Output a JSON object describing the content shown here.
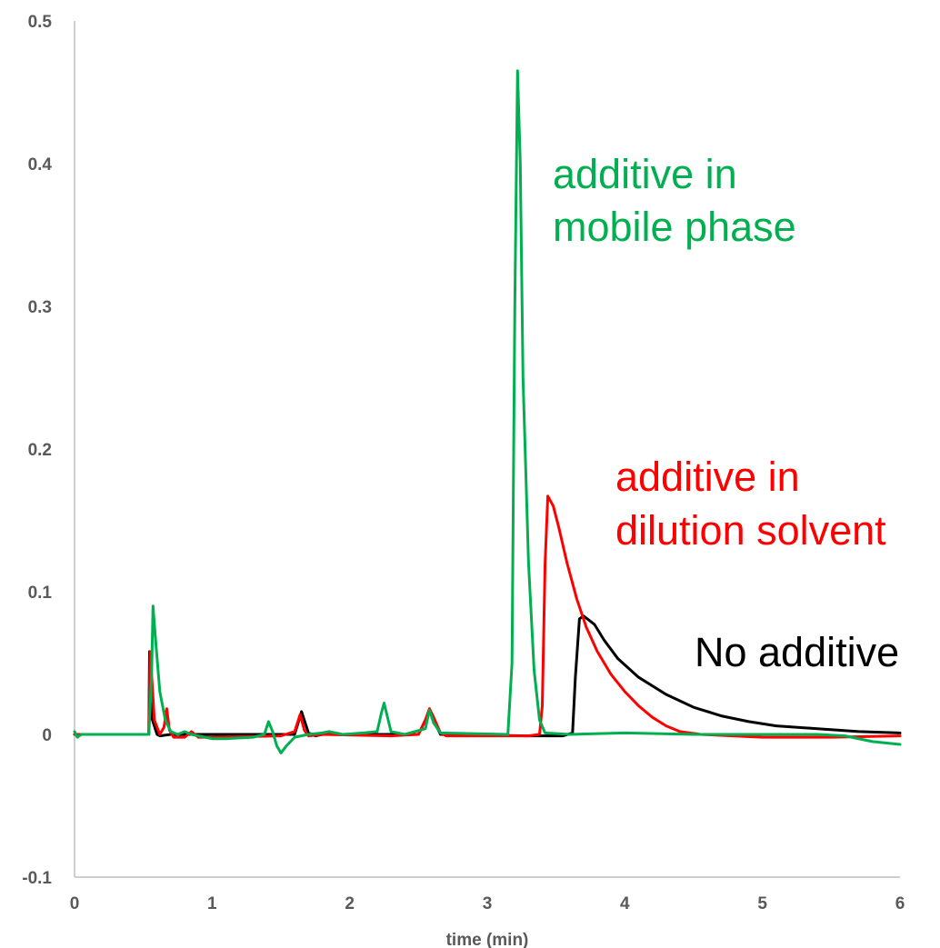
{
  "chart_data": {
    "type": "line",
    "title": "",
    "xlabel": "time (min)",
    "ylabel": "",
    "xlim": [
      0,
      6
    ],
    "ylim": [
      -0.1,
      0.5
    ],
    "grid": false,
    "x_ticks": [
      "0",
      "1",
      "2",
      "3",
      "4",
      "5",
      "6"
    ],
    "y_ticks": [
      "-0.1",
      "0",
      "0.1",
      "0.2",
      "0.3",
      "0.4",
      "0.5"
    ],
    "annotations": [
      {
        "text": "additive in",
        "color": "#00b050"
      },
      {
        "text": "mobile phase",
        "color": "#00b050"
      },
      {
        "text": "additive in",
        "color": "#ff0000"
      },
      {
        "text": "dilution solvent",
        "color": "#ff0000"
      },
      {
        "text": "No additive",
        "color": "#000000"
      }
    ],
    "series": [
      {
        "color": "#000000",
        "points": [
          [
            0,
            0
          ],
          [
            0.54,
            0
          ],
          [
            0.545,
            0.058
          ],
          [
            0.56,
            0.012
          ],
          [
            0.6,
            0
          ],
          [
            0.62,
            -0.001
          ],
          [
            0.7,
            0
          ],
          [
            1.6,
            0
          ],
          [
            1.65,
            0.016
          ],
          [
            1.7,
            0.001
          ],
          [
            1.75,
            -0.001
          ],
          [
            1.8,
            0
          ],
          [
            2.5,
            0
          ],
          [
            2.55,
            0.01
          ],
          [
            2.58,
            0.017
          ],
          [
            2.61,
            0.01
          ],
          [
            2.66,
            0
          ],
          [
            3.3,
            -0.001
          ],
          [
            3.55,
            -0.001
          ],
          [
            3.62,
            0.001
          ],
          [
            3.64,
            0.04
          ],
          [
            3.67,
            0.081
          ],
          [
            3.7,
            0.083
          ],
          [
            3.78,
            0.077
          ],
          [
            3.85,
            0.066
          ],
          [
            3.95,
            0.053
          ],
          [
            4.1,
            0.04
          ],
          [
            4.3,
            0.028
          ],
          [
            4.5,
            0.019
          ],
          [
            4.7,
            0.013
          ],
          [
            4.9,
            0.009
          ],
          [
            5.1,
            0.006
          ],
          [
            5.4,
            0.004
          ],
          [
            5.7,
            0.002
          ],
          [
            6,
            0.001
          ]
        ]
      },
      {
        "color": "#ff0000",
        "points": [
          [
            0,
            0
          ],
          [
            0.54,
            0
          ],
          [
            0.55,
            0.058
          ],
          [
            0.58,
            0.01
          ],
          [
            0.62,
            0
          ],
          [
            0.65,
            0.005
          ],
          [
            0.67,
            0.018
          ],
          [
            0.69,
            0.003
          ],
          [
            0.72,
            -0.002
          ],
          [
            0.8,
            -0.002
          ],
          [
            0.85,
            0.002
          ],
          [
            0.9,
            -0.002
          ],
          [
            1.0,
            -0.002
          ],
          [
            1.5,
            -0.001
          ],
          [
            1.6,
            0.002
          ],
          [
            1.64,
            0.014
          ],
          [
            1.67,
            0.003
          ],
          [
            1.7,
            -0.001
          ],
          [
            1.8,
            0
          ],
          [
            2.3,
            -0.001
          ],
          [
            2.5,
            0
          ],
          [
            2.55,
            0.01
          ],
          [
            2.58,
            0.018
          ],
          [
            2.61,
            0.012
          ],
          [
            2.66,
            0.001
          ],
          [
            2.7,
            -0.001
          ],
          [
            3.3,
            -0.001
          ],
          [
            3.38,
            0
          ],
          [
            3.4,
            0.02
          ],
          [
            3.42,
            0.12
          ],
          [
            3.44,
            0.167
          ],
          [
            3.48,
            0.16
          ],
          [
            3.52,
            0.145
          ],
          [
            3.58,
            0.12
          ],
          [
            3.65,
            0.095
          ],
          [
            3.72,
            0.075
          ],
          [
            3.8,
            0.058
          ],
          [
            3.9,
            0.042
          ],
          [
            4.0,
            0.03
          ],
          [
            4.1,
            0.02
          ],
          [
            4.2,
            0.012
          ],
          [
            4.3,
            0.006
          ],
          [
            4.4,
            0.002
          ],
          [
            4.55,
            0
          ],
          [
            5.0,
            -0.002
          ],
          [
            5.5,
            -0.002
          ],
          [
            6,
            -0.001
          ]
        ]
      },
      {
        "color": "#00b050",
        "points": [
          [
            0,
            0.002
          ],
          [
            0.02,
            -0.002
          ],
          [
            0.05,
            0
          ],
          [
            0.54,
            0
          ],
          [
            0.56,
            0.04
          ],
          [
            0.57,
            0.09
          ],
          [
            0.59,
            0.065
          ],
          [
            0.62,
            0.03
          ],
          [
            0.66,
            0.01
          ],
          [
            0.7,
            0.002
          ],
          [
            0.75,
            0
          ],
          [
            0.8,
            0.002
          ],
          [
            0.85,
            0
          ],
          [
            0.95,
            -0.002
          ],
          [
            1.0,
            -0.003
          ],
          [
            1.1,
            -0.003
          ],
          [
            1.3,
            -0.002
          ],
          [
            1.38,
            0
          ],
          [
            1.41,
            0.009
          ],
          [
            1.44,
            0.002
          ],
          [
            1.47,
            -0.008
          ],
          [
            1.5,
            -0.013
          ],
          [
            1.54,
            -0.008
          ],
          [
            1.6,
            -0.002
          ],
          [
            1.7,
            0
          ],
          [
            1.8,
            0.001
          ],
          [
            1.85,
            0.002
          ],
          [
            1.95,
            0
          ],
          [
            2.1,
            0.001
          ],
          [
            2.2,
            0.002
          ],
          [
            2.23,
            0.015
          ],
          [
            2.25,
            0.022
          ],
          [
            2.27,
            0.014
          ],
          [
            2.3,
            0.002
          ],
          [
            2.4,
            0
          ],
          [
            2.55,
            0.004
          ],
          [
            2.58,
            0.017
          ],
          [
            2.61,
            0.008
          ],
          [
            2.66,
            0.001
          ],
          [
            3.15,
            0
          ],
          [
            3.18,
            0.05
          ],
          [
            3.2,
            0.3
          ],
          [
            3.22,
            0.465
          ],
          [
            3.24,
            0.4
          ],
          [
            3.26,
            0.25
          ],
          [
            3.3,
            0.12
          ],
          [
            3.34,
            0.045
          ],
          [
            3.38,
            0.01
          ],
          [
            3.42,
            0.001
          ],
          [
            3.6,
            0
          ],
          [
            4.0,
            0.001
          ],
          [
            4.5,
            0
          ],
          [
            5.0,
            0
          ],
          [
            5.4,
            0
          ],
          [
            5.6,
            -0.001
          ],
          [
            5.8,
            -0.005
          ],
          [
            6,
            -0.007
          ]
        ]
      }
    ]
  }
}
